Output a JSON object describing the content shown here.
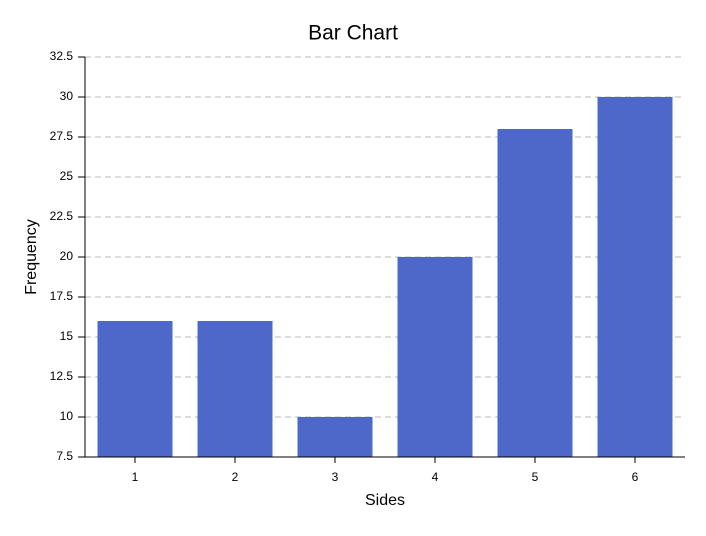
{
  "chart_data": {
    "type": "bar",
    "title": "Bar Chart",
    "x_label": "Sides",
    "y_label": "Frequency",
    "categories": [
      "1",
      "2",
      "3",
      "4",
      "5",
      "6"
    ],
    "values": [
      16,
      16,
      10,
      20,
      28,
      30
    ],
    "color": "#4d68c9",
    "ylim": [
      7.5,
      32.5
    ],
    "yticks": [
      7.5,
      10,
      12.5,
      15,
      17.5,
      20,
      22.5,
      25,
      27.5,
      30,
      32.5
    ],
    "grid": true
  }
}
